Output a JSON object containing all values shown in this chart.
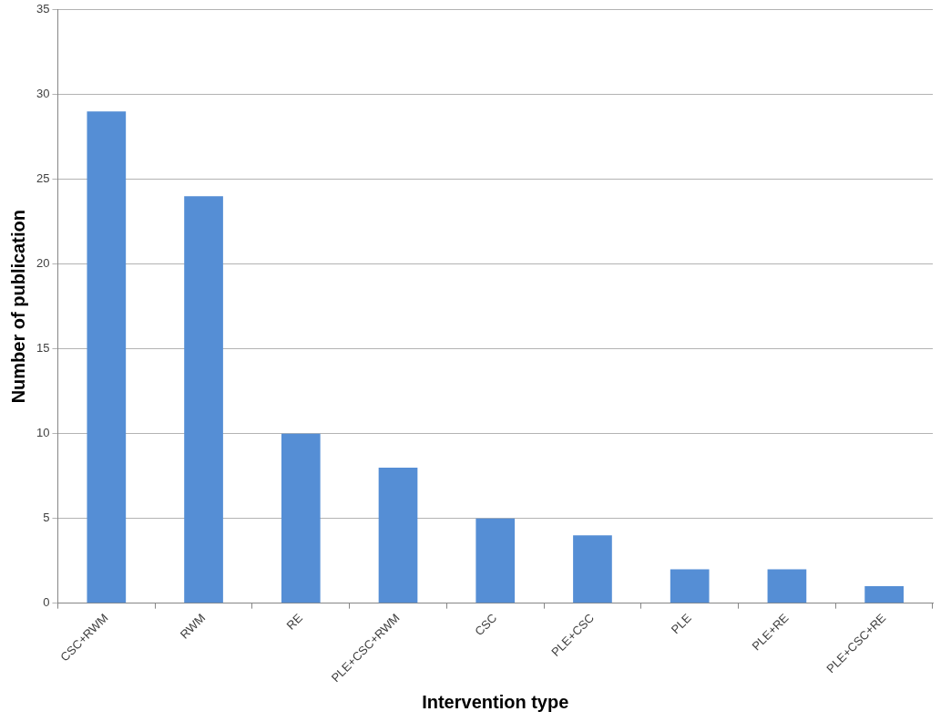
{
  "chart_data": {
    "type": "bar",
    "xlabel": "Intervention type",
    "ylabel": "Number of publication",
    "categories": [
      "CSC+RWM",
      "RWM",
      "RE",
      "PLE+CSC+RWM",
      "CSC",
      "PLE+CSC",
      "PLE",
      "PLE+RE",
      "PLE+CSC+RE"
    ],
    "values": [
      29,
      24,
      10,
      8,
      5,
      4,
      2,
      2,
      1
    ],
    "color": "#558ed5",
    "ylim": [
      0,
      35
    ],
    "yticks": [
      0,
      5,
      10,
      15,
      20,
      25,
      30,
      35
    ],
    "grid": "y",
    "legend": false
  }
}
